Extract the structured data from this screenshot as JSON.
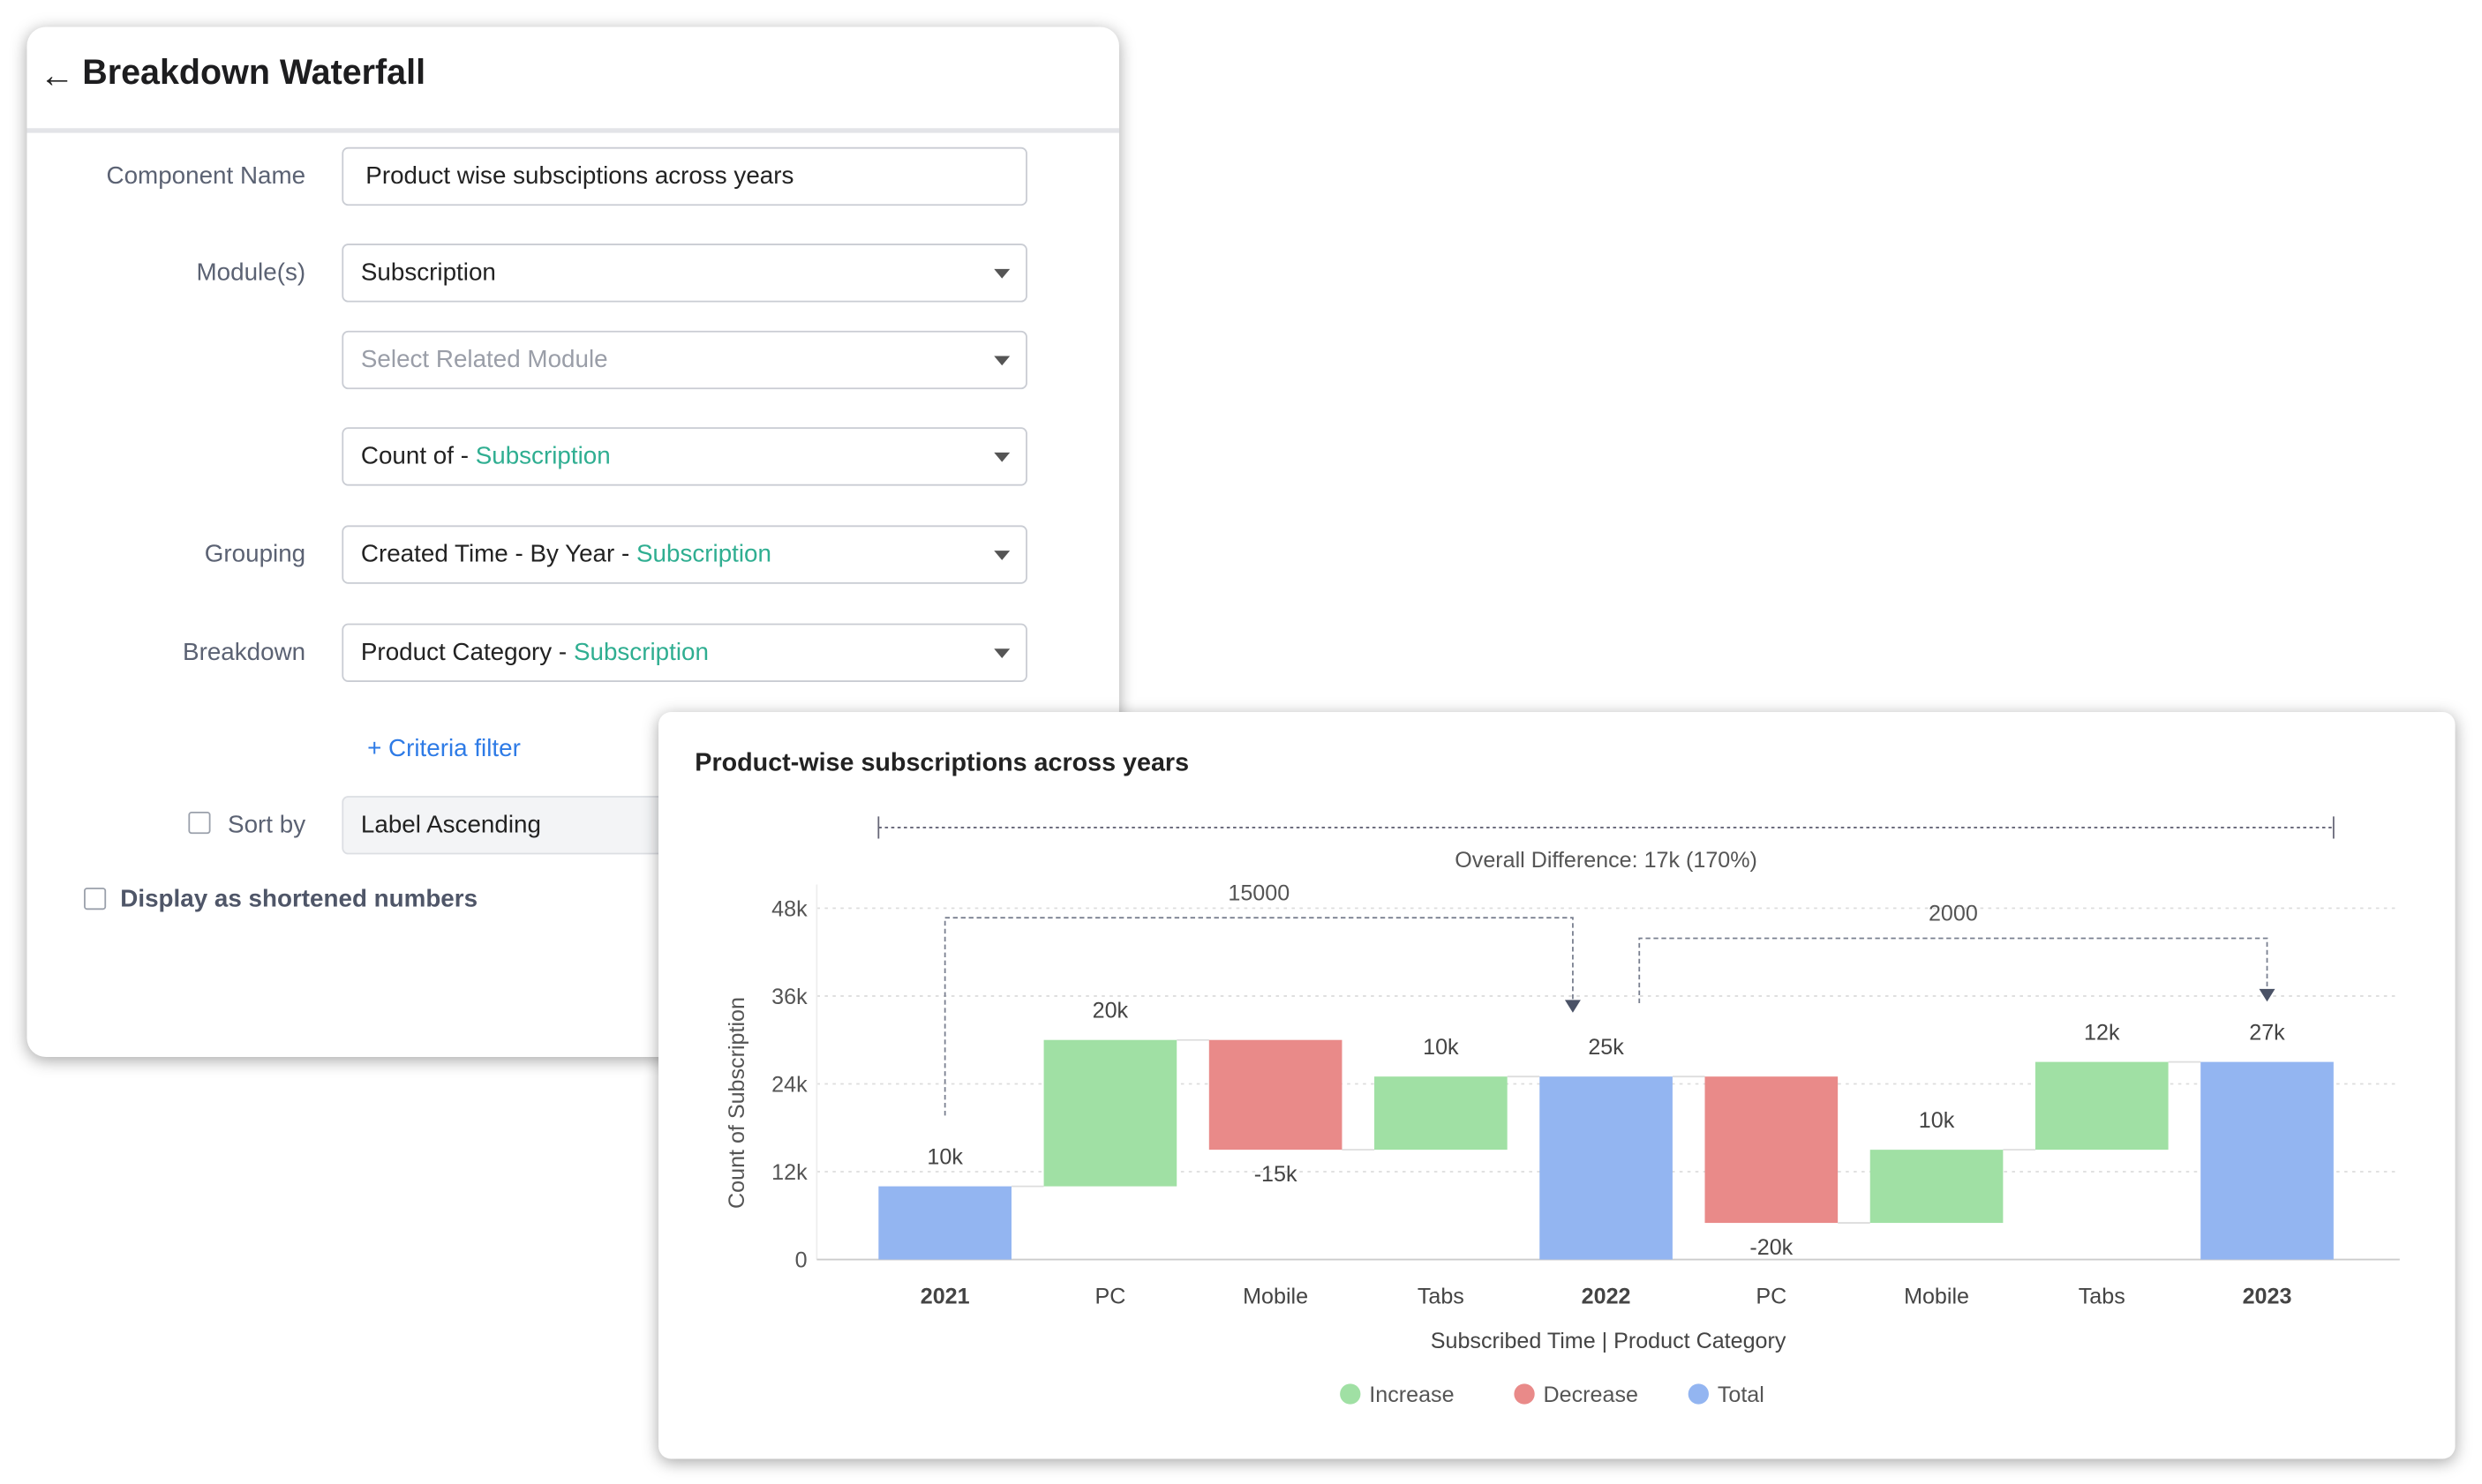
{
  "form": {
    "back_icon": "arrow-left-icon",
    "title": "Breakdown Waterfall",
    "component_name_label": "Component Name",
    "component_name_value": "Product wise subsciptions across years",
    "modules_label": "Module(s)",
    "module_value": "Subscription",
    "related_module_placeholder": "Select Related Module",
    "count_prefix": "Count of - ",
    "count_module": "Subscription",
    "grouping_label": "Grouping",
    "grouping_prefix": "Created Time - By Year - ",
    "grouping_module": "Subscription",
    "breakdown_label": "Breakdown",
    "breakdown_prefix": "Product Category - ",
    "breakdown_module": "Subscription",
    "criteria_filter": "+ Criteria filter",
    "sort_by_label": "Sort by",
    "sort_by_value": "Label Ascending",
    "sort_by_checked": false,
    "shortened_label": "Display as shortened numbers",
    "shortened_checked": false
  },
  "chart_data": {
    "type": "waterfall",
    "title": "Product-wise subscriptions across years",
    "xlabel": "Subscribed Time | Product Category",
    "ylabel": "Count of Subscription",
    "ylim": [
      0,
      48000
    ],
    "yticks": [
      "0",
      "12k",
      "24k",
      "36k",
      "48k"
    ],
    "ytick_values": [
      0,
      12000,
      24000,
      36000,
      48000
    ],
    "grid": true,
    "legend_placement": "bottom",
    "colors": {
      "Increase": "#a0e0a4",
      "Decrease": "#e98a89",
      "Total": "#93b5f1"
    },
    "legend": [
      "Increase",
      "Decrease",
      "Total"
    ],
    "points": [
      {
        "category": "2021",
        "kind": "Total",
        "value": 10000,
        "label": "10k",
        "bold": true
      },
      {
        "category": "PC",
        "kind": "Increase",
        "value": 20000,
        "label": "20k"
      },
      {
        "category": "Mobile",
        "kind": "Decrease",
        "value": -15000,
        "label": "-15k"
      },
      {
        "category": "Tabs",
        "kind": "Increase",
        "value": 10000,
        "label": "10k"
      },
      {
        "category": "2022",
        "kind": "Total",
        "value": 25000,
        "label": "25k",
        "bold": true
      },
      {
        "category": "PC",
        "kind": "Decrease",
        "value": -20000,
        "label": "-20k"
      },
      {
        "category": "Mobile",
        "kind": "Increase",
        "value": 10000,
        "label": "10k"
      },
      {
        "category": "Tabs",
        "kind": "Increase",
        "value": 12000,
        "label": "12k"
      },
      {
        "category": "2023",
        "kind": "Total",
        "value": 27000,
        "label": "27k",
        "bold": true
      }
    ],
    "annotations": {
      "overall": "Overall Difference: 17k (170%)",
      "brackets": [
        {
          "from": 0,
          "to": 4,
          "label": "15000"
        },
        {
          "from": 4,
          "to": 8,
          "label": "2000"
        }
      ]
    }
  }
}
